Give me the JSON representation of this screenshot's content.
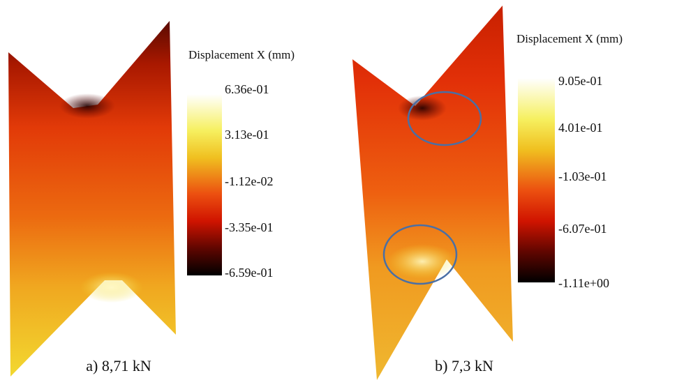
{
  "panels": [
    {
      "caption": "a) 8,71 kN",
      "colorbar": {
        "title": "Displacement X (mm)",
        "labels": [
          "6.36e-01",
          "3.13e-01",
          "-1.12e-02",
          "-3.35e-01",
          "-6.59e-01"
        ]
      }
    },
    {
      "caption": "b) 7,3 kN",
      "colorbar": {
        "title": "Displacement X (mm)",
        "labels": [
          "9.05e-01",
          "4.01e-01",
          "-1.03e-01",
          "-6.07e-01",
          "-1.11e+00"
        ]
      }
    }
  ]
}
